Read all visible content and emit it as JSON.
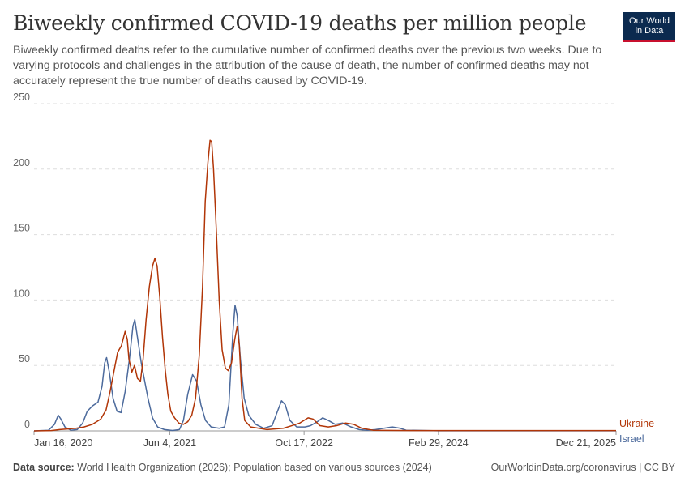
{
  "header": {
    "title": "Biweekly confirmed COVID-19 deaths per million people",
    "subtitle": "Biweekly confirmed deaths refer to the cumulative number of confirmed deaths over the previous two weeks. Due to varying protocols and challenges in the attribution of the cause of death, the number of confirmed deaths may not accurately represent the true number of deaths caused by COVID-19.",
    "logo_line1": "Our World",
    "logo_line2": "in Data"
  },
  "footer": {
    "source_label": "Data source:",
    "source_text": " World Health Organization (2026); Population based on various sources (2024)",
    "credit": "OurWorldinData.org/coronavirus | CC BY"
  },
  "colors": {
    "ukraine": "#b13507",
    "israel": "#4c6a9c",
    "grid": "#dddddd",
    "axis_text": "#666666"
  },
  "chart_data": {
    "type": "line",
    "title": "Biweekly confirmed COVID-19 deaths per million people",
    "xlabel": "",
    "ylabel": "",
    "ylim": [
      0,
      250
    ],
    "yticks": [
      "0",
      "50",
      "100",
      "150",
      "200",
      "250"
    ],
    "xlim": [
      "2020-01-16",
      "2025-12-21"
    ],
    "xticks": [
      {
        "date": "2020-01-16",
        "label": "Jan 16, 2020"
      },
      {
        "date": "2021-06-04",
        "label": "Jun 4, 2021"
      },
      {
        "date": "2022-10-17",
        "label": "Oct 17, 2022"
      },
      {
        "date": "2024-02-29",
        "label": "Feb 29, 2024"
      },
      {
        "date": "2025-12-21",
        "label": "Dec 21, 2025"
      }
    ],
    "grid": "horizontal dashed",
    "legend": "end-of-line labels",
    "series": [
      {
        "name": "Ukraine",
        "color": "#b13507",
        "points": [
          [
            "2020-01-16",
            0
          ],
          [
            "2020-03-20",
            0.2
          ],
          [
            "2020-04-20",
            1
          ],
          [
            "2020-05-20",
            1.5
          ],
          [
            "2020-06-20",
            2
          ],
          [
            "2020-07-20",
            3
          ],
          [
            "2020-08-20",
            5
          ],
          [
            "2020-09-20",
            9
          ],
          [
            "2020-10-10",
            16
          ],
          [
            "2020-10-25",
            30
          ],
          [
            "2020-11-08",
            45
          ],
          [
            "2020-11-22",
            60
          ],
          [
            "2020-12-06",
            65
          ],
          [
            "2020-12-20",
            76
          ],
          [
            "2020-12-28",
            70
          ],
          [
            "2021-01-03",
            55
          ],
          [
            "2021-01-14",
            45
          ],
          [
            "2021-01-24",
            50
          ],
          [
            "2021-02-04",
            40
          ],
          [
            "2021-02-15",
            38
          ],
          [
            "2021-02-25",
            55
          ],
          [
            "2021-03-08",
            85
          ],
          [
            "2021-03-20",
            110
          ],
          [
            "2021-04-01",
            126
          ],
          [
            "2021-04-10",
            132
          ],
          [
            "2021-04-18",
            126
          ],
          [
            "2021-04-28",
            102
          ],
          [
            "2021-05-08",
            72
          ],
          [
            "2021-05-18",
            47
          ],
          [
            "2021-05-28",
            28
          ],
          [
            "2021-06-08",
            15
          ],
          [
            "2021-06-22",
            10
          ],
          [
            "2021-07-08",
            6
          ],
          [
            "2021-07-25",
            5
          ],
          [
            "2021-08-10",
            7
          ],
          [
            "2021-08-25",
            12
          ],
          [
            "2021-09-08",
            25
          ],
          [
            "2021-09-22",
            58
          ],
          [
            "2021-10-04",
            110
          ],
          [
            "2021-10-14",
            175
          ],
          [
            "2021-10-24",
            205
          ],
          [
            "2021-11-01",
            222
          ],
          [
            "2021-11-07",
            221
          ],
          [
            "2021-11-14",
            200
          ],
          [
            "2021-11-24",
            155
          ],
          [
            "2021-12-05",
            100
          ],
          [
            "2021-12-16",
            62
          ],
          [
            "2021-12-28",
            48
          ],
          [
            "2022-01-08",
            46
          ],
          [
            "2022-01-20",
            52
          ],
          [
            "2022-02-01",
            70
          ],
          [
            "2022-02-10",
            80
          ],
          [
            "2022-02-18",
            65
          ],
          [
            "2022-02-28",
            25
          ],
          [
            "2022-03-10",
            8
          ],
          [
            "2022-04-01",
            3
          ],
          [
            "2022-06-01",
            1
          ],
          [
            "2022-08-01",
            2
          ],
          [
            "2022-09-01",
            4
          ],
          [
            "2022-10-01",
            6
          ],
          [
            "2022-11-01",
            10
          ],
          [
            "2022-11-20",
            9
          ],
          [
            "2022-12-15",
            4
          ],
          [
            "2023-01-15",
            3
          ],
          [
            "2023-02-15",
            4
          ],
          [
            "2023-03-20",
            6
          ],
          [
            "2023-04-20",
            5
          ],
          [
            "2023-05-20",
            2
          ],
          [
            "2023-07-01",
            0.5
          ],
          [
            "2023-10-01",
            0.3
          ],
          [
            "2024-02-29",
            0.2
          ],
          [
            "2025-12-21",
            0.2
          ]
        ]
      },
      {
        "name": "Israel",
        "color": "#4c6a9c",
        "points": [
          [
            "2020-01-16",
            0
          ],
          [
            "2020-03-10",
            0.5
          ],
          [
            "2020-04-01",
            5
          ],
          [
            "2020-04-15",
            12
          ],
          [
            "2020-04-25",
            9
          ],
          [
            "2020-05-10",
            3
          ],
          [
            "2020-06-01",
            0.5
          ],
          [
            "2020-06-25",
            1
          ],
          [
            "2020-07-15",
            6
          ],
          [
            "2020-08-01",
            15
          ],
          [
            "2020-08-20",
            19
          ],
          [
            "2020-09-10",
            22
          ],
          [
            "2020-09-25",
            34
          ],
          [
            "2020-10-05",
            52
          ],
          [
            "2020-10-12",
            56
          ],
          [
            "2020-10-22",
            45
          ],
          [
            "2020-11-05",
            25
          ],
          [
            "2020-11-20",
            15
          ],
          [
            "2020-12-05",
            14
          ],
          [
            "2020-12-20",
            30
          ],
          [
            "2021-01-05",
            55
          ],
          [
            "2021-01-18",
            80
          ],
          [
            "2021-01-25",
            85
          ],
          [
            "2021-02-05",
            70
          ],
          [
            "2021-02-18",
            52
          ],
          [
            "2021-03-01",
            40
          ],
          [
            "2021-03-15",
            25
          ],
          [
            "2021-04-01",
            10
          ],
          [
            "2021-04-20",
            3
          ],
          [
            "2021-05-15",
            1
          ],
          [
            "2021-06-15",
            0.3
          ],
          [
            "2021-07-10",
            1
          ],
          [
            "2021-07-25",
            8
          ],
          [
            "2021-08-10",
            28
          ],
          [
            "2021-08-28",
            43
          ],
          [
            "2021-09-12",
            38
          ],
          [
            "2021-09-28",
            20
          ],
          [
            "2021-10-15",
            8
          ],
          [
            "2021-11-05",
            3
          ],
          [
            "2021-12-05",
            2
          ],
          [
            "2021-12-25",
            3
          ],
          [
            "2022-01-10",
            20
          ],
          [
            "2022-01-25",
            75
          ],
          [
            "2022-02-02",
            96
          ],
          [
            "2022-02-10",
            88
          ],
          [
            "2022-02-22",
            55
          ],
          [
            "2022-03-08",
            25
          ],
          [
            "2022-03-25",
            12
          ],
          [
            "2022-04-20",
            5
          ],
          [
            "2022-05-20",
            2
          ],
          [
            "2022-06-20",
            4
          ],
          [
            "2022-07-10",
            15
          ],
          [
            "2022-07-25",
            23
          ],
          [
            "2022-08-08",
            20
          ],
          [
            "2022-08-25",
            8
          ],
          [
            "2022-09-20",
            3
          ],
          [
            "2022-10-20",
            3
          ],
          [
            "2022-11-10",
            4
          ],
          [
            "2022-12-05",
            7
          ],
          [
            "2022-12-25",
            10
          ],
          [
            "2023-01-15",
            8
          ],
          [
            "2023-02-10",
            5
          ],
          [
            "2023-03-10",
            6
          ],
          [
            "2023-04-10",
            3
          ],
          [
            "2023-05-10",
            1
          ],
          [
            "2023-06-10",
            0.5
          ],
          [
            "2023-07-10",
            1
          ],
          [
            "2023-08-10",
            2
          ],
          [
            "2023-09-10",
            3
          ],
          [
            "2023-10-10",
            2
          ],
          [
            "2023-11-01",
            0.5
          ],
          [
            "2024-02-29",
            0.1
          ],
          [
            "2025-12-21",
            0.1
          ]
        ]
      }
    ]
  }
}
